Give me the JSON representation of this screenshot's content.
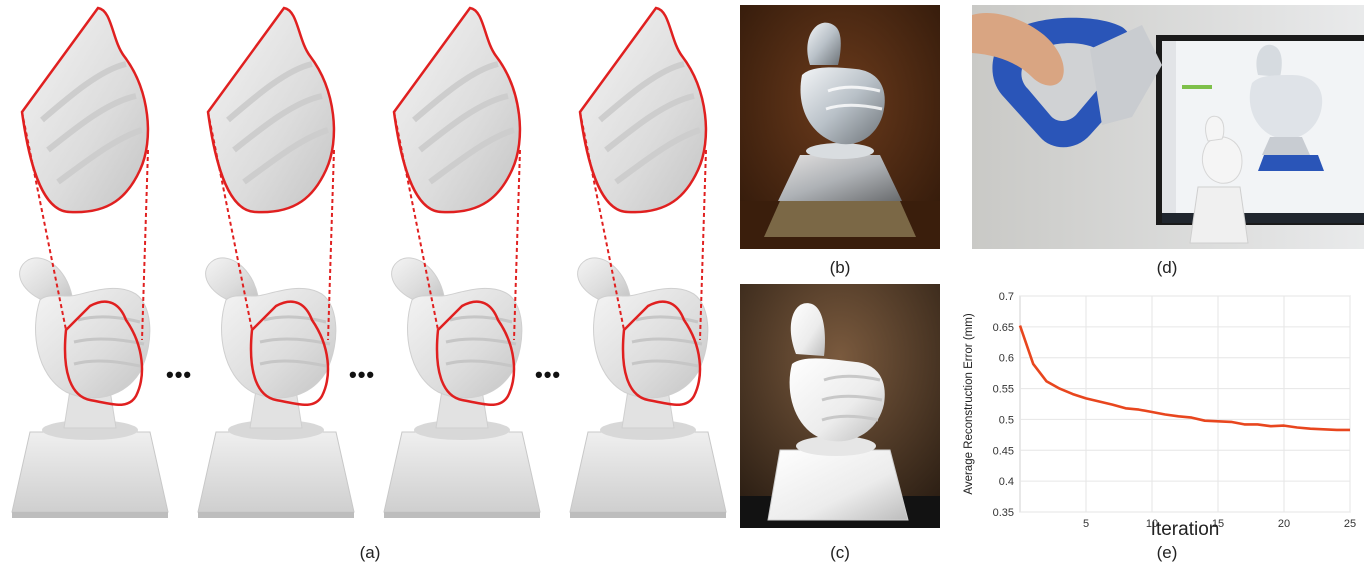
{
  "panels": {
    "a": {
      "caption": "(a)",
      "ellipsis": "•••"
    },
    "b": {
      "caption": "(b)"
    },
    "c": {
      "caption": "(c)"
    },
    "d": {
      "caption": "(d)"
    },
    "e": {
      "caption": "(e)"
    }
  },
  "colors": {
    "outline_red": "#e02020",
    "curve": "#e8461e",
    "grid": "#e6e6e6",
    "mesh": "#e7e7e7",
    "photo_b_bg": "#4a2a14",
    "photo_c_bg": "#2b2018",
    "scanner_blue": "#2a55b8"
  },
  "chart_data": {
    "type": "line",
    "xlabel": "Iteration",
    "ylabel": "Average Reconstruction Error (mm)",
    "xlim": [
      0,
      25
    ],
    "ylim": [
      0.35,
      0.7
    ],
    "xticks": [
      "5",
      "10",
      "15",
      "20",
      "25"
    ],
    "yticks": [
      "0.35",
      "0.4",
      "0.45",
      "0.5",
      "0.55",
      "0.6",
      "0.65",
      "0.7"
    ],
    "grid": true,
    "series": [
      {
        "x": [
          0,
          1,
          2,
          3,
          4,
          5,
          6,
          7,
          8,
          9,
          10,
          11,
          12,
          13,
          14,
          15,
          16,
          17,
          18,
          19,
          20,
          21,
          22,
          23,
          24,
          25
        ],
        "values": [
          0.652,
          0.59,
          0.562,
          0.55,
          0.541,
          0.534,
          0.529,
          0.524,
          0.518,
          0.516,
          0.512,
          0.508,
          0.505,
          0.503,
          0.498,
          0.497,
          0.496,
          0.492,
          0.492,
          0.489,
          0.49,
          0.487,
          0.485,
          0.484,
          0.483,
          0.483
        ]
      }
    ]
  }
}
